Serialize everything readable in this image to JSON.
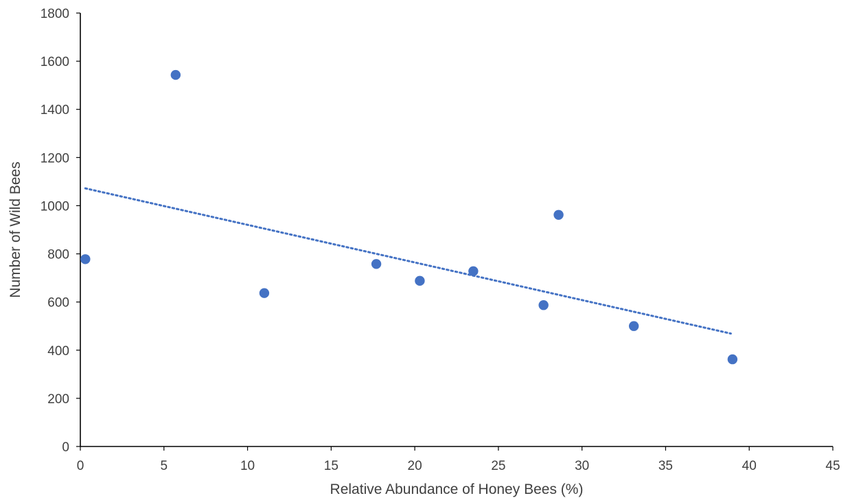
{
  "chart_data": {
    "type": "scatter",
    "xlabel": "Relative Abundance of Honey Bees (%)",
    "ylabel": "Number of Wild Bees",
    "xlim": [
      0,
      45
    ],
    "ylim": [
      0,
      1800
    ],
    "xticks": [
      0,
      5,
      10,
      15,
      20,
      25,
      30,
      35,
      40,
      45
    ],
    "yticks": [
      0,
      200,
      400,
      600,
      800,
      1000,
      1200,
      1400,
      1600,
      1800
    ],
    "grid": false,
    "legend": "none",
    "series": [
      {
        "x": [
          0.3,
          5.7,
          11.0,
          17.7,
          20.3,
          23.5,
          27.7,
          28.6,
          33.1,
          39.0
        ],
        "y": [
          778,
          1543,
          637,
          758,
          688,
          728,
          587,
          962,
          500,
          362
        ]
      }
    ],
    "trendline": {
      "type": "linear",
      "style": "dotted",
      "x_range": [
        0.3,
        38.9
      ],
      "y_start": 1072,
      "y_end": 469
    },
    "colors": {
      "points": "#4472C4",
      "trendline": "#4472C4",
      "axis": "#000000",
      "text": "#404040"
    }
  }
}
